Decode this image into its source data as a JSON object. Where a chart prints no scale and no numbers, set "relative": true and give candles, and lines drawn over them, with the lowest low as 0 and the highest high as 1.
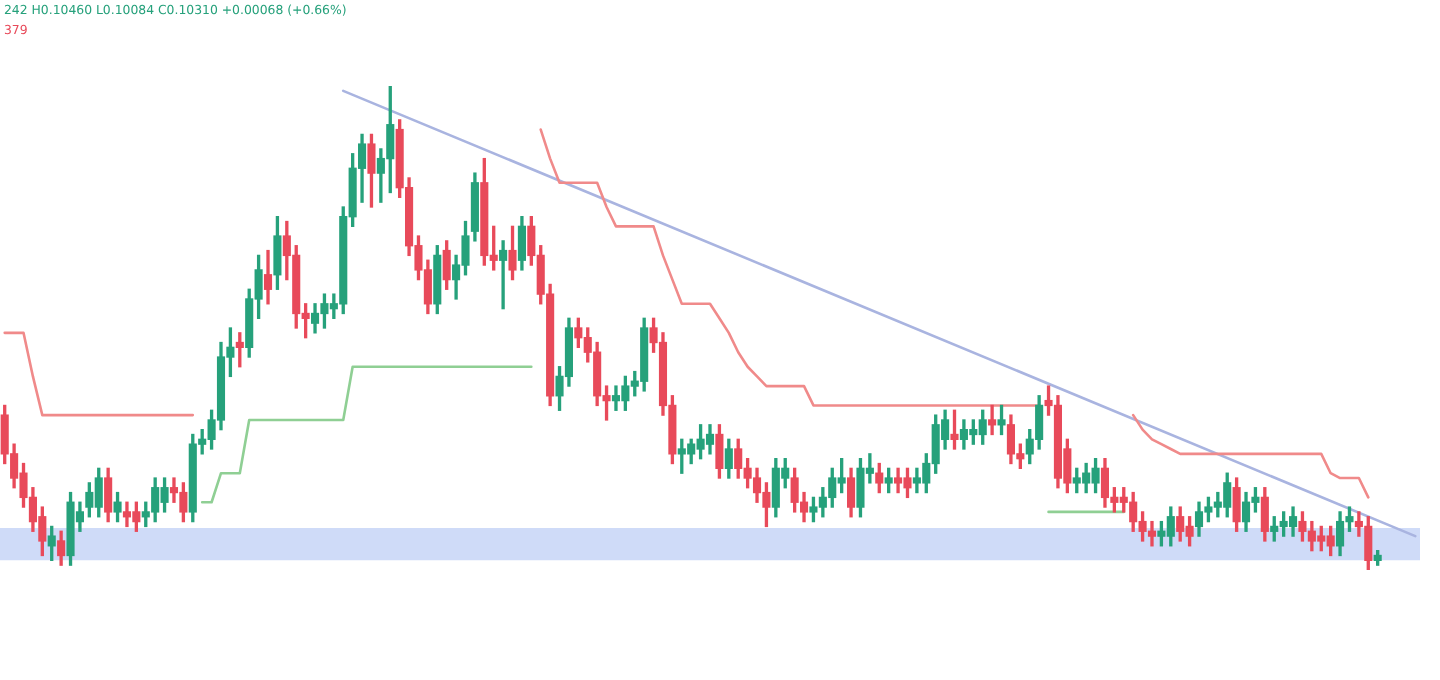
{
  "chart_data": {
    "type": "candlestick",
    "relative": true,
    "tick_labels": false,
    "grid": false,
    "legend": false,
    "marker": "none",
    "annotations": [
      "242 H0.10460 L0.10084 C0.10310 +0.00068 (+0.66%)",
      "379"
    ],
    "categories": [
      null,
      null,
      null,
      null,
      null,
      null,
      null,
      null,
      null,
      null,
      null,
      null,
      null,
      null,
      null,
      null,
      null,
      null,
      null,
      null,
      null,
      null,
      null,
      null,
      null,
      null,
      null,
      null,
      null,
      null,
      null,
      null,
      null,
      null,
      null,
      null,
      null,
      null,
      null,
      null,
      null,
      null,
      null,
      null,
      null,
      null,
      null,
      null,
      null,
      null,
      null,
      null,
      null,
      null,
      null,
      null,
      null,
      null,
      null,
      null,
      null,
      null,
      null,
      null,
      null,
      null,
      null,
      null,
      null,
      null,
      null,
      null,
      null,
      null,
      null,
      null,
      null,
      null,
      null,
      null,
      null,
      null,
      null,
      null,
      null,
      null,
      null,
      null,
      null,
      null,
      null,
      null,
      null,
      null,
      null,
      null,
      null,
      null,
      null,
      null,
      null,
      null,
      null,
      null,
      null,
      null,
      null,
      null,
      null,
      null,
      null,
      null,
      null,
      null,
      null,
      null,
      null,
      null,
      null,
      null,
      null,
      null,
      null,
      null,
      null,
      null,
      null,
      null,
      null,
      null,
      null,
      null,
      null,
      null,
      null,
      null,
      null,
      null,
      null,
      null,
      null,
      null,
      null,
      null,
      null,
      null,
      null,
      null,
      null,
      null,
      null
    ],
    "bands": [
      {
        "axis": "y",
        "from": 0.02,
        "to": 0.087,
        "color": "#cfdbf8"
      }
    ],
    "series": [
      {
        "type": "candlestick",
        "ohlc": [
          [
            0.32,
            0.34,
            0.22,
            0.24
          ],
          [
            0.24,
            0.26,
            0.17,
            0.19
          ],
          [
            0.2,
            0.22,
            0.13,
            0.15
          ],
          [
            0.15,
            0.17,
            0.08,
            0.1
          ],
          [
            0.11,
            0.13,
            0.03,
            0.06
          ],
          [
            0.05,
            0.09,
            0.02,
            0.07
          ],
          [
            0.06,
            0.08,
            0.01,
            0.03
          ],
          [
            0.03,
            0.16,
            0.01,
            0.14
          ],
          [
            0.1,
            0.14,
            0.08,
            0.12
          ],
          [
            0.13,
            0.18,
            0.11,
            0.16
          ],
          [
            0.13,
            0.21,
            0.11,
            0.19
          ],
          [
            0.19,
            0.21,
            0.1,
            0.12
          ],
          [
            0.12,
            0.16,
            0.1,
            0.14
          ],
          [
            0.12,
            0.14,
            0.09,
            0.11
          ],
          [
            0.12,
            0.14,
            0.08,
            0.1
          ],
          [
            0.11,
            0.14,
            0.09,
            0.12
          ],
          [
            0.12,
            0.19,
            0.1,
            0.17
          ],
          [
            0.14,
            0.19,
            0.12,
            0.17
          ],
          [
            0.17,
            0.19,
            0.14,
            0.16
          ],
          [
            0.16,
            0.18,
            0.1,
            0.12
          ],
          [
            0.12,
            0.28,
            0.1,
            0.26
          ],
          [
            0.26,
            0.29,
            0.24,
            0.27
          ],
          [
            0.27,
            0.33,
            0.25,
            0.31
          ],
          [
            0.31,
            0.47,
            0.29,
            0.44
          ],
          [
            0.44,
            0.5,
            0.4,
            0.46
          ],
          [
            0.47,
            0.49,
            0.42,
            0.46
          ],
          [
            0.46,
            0.58,
            0.44,
            0.56
          ],
          [
            0.56,
            0.65,
            0.52,
            0.62
          ],
          [
            0.61,
            0.66,
            0.55,
            0.58
          ],
          [
            0.61,
            0.73,
            0.58,
            0.69
          ],
          [
            0.69,
            0.72,
            0.6,
            0.65
          ],
          [
            0.65,
            0.67,
            0.5,
            0.53
          ],
          [
            0.53,
            0.55,
            0.48,
            0.52
          ],
          [
            0.51,
            0.55,
            0.49,
            0.53
          ],
          [
            0.53,
            0.57,
            0.5,
            0.55
          ],
          [
            0.54,
            0.57,
            0.52,
            0.55
          ],
          [
            0.55,
            0.75,
            0.53,
            0.73
          ],
          [
            0.73,
            0.86,
            0.71,
            0.83
          ],
          [
            0.83,
            0.9,
            0.76,
            0.88
          ],
          [
            0.88,
            0.9,
            0.75,
            0.82
          ],
          [
            0.82,
            0.87,
            0.76,
            0.85
          ],
          [
            0.85,
            1.0,
            0.78,
            0.92
          ],
          [
            0.91,
            0.93,
            0.77,
            0.79
          ],
          [
            0.79,
            0.81,
            0.65,
            0.67
          ],
          [
            0.67,
            0.69,
            0.6,
            0.62
          ],
          [
            0.62,
            0.64,
            0.53,
            0.55
          ],
          [
            0.55,
            0.67,
            0.53,
            0.65
          ],
          [
            0.66,
            0.68,
            0.58,
            0.6
          ],
          [
            0.6,
            0.65,
            0.56,
            0.63
          ],
          [
            0.63,
            0.72,
            0.61,
            0.69
          ],
          [
            0.7,
            0.82,
            0.68,
            0.8
          ],
          [
            0.8,
            0.85,
            0.63,
            0.65
          ],
          [
            0.65,
            0.71,
            0.62,
            0.64
          ],
          [
            0.64,
            0.68,
            0.54,
            0.66
          ],
          [
            0.66,
            0.71,
            0.6,
            0.62
          ],
          [
            0.64,
            0.73,
            0.62,
            0.71
          ],
          [
            0.71,
            0.73,
            0.63,
            0.65
          ],
          [
            0.65,
            0.67,
            0.55,
            0.57
          ],
          [
            0.57,
            0.59,
            0.34,
            0.36
          ],
          [
            0.36,
            0.42,
            0.33,
            0.4
          ],
          [
            0.4,
            0.52,
            0.38,
            0.5
          ],
          [
            0.5,
            0.52,
            0.46,
            0.48
          ],
          [
            0.48,
            0.5,
            0.43,
            0.45
          ],
          [
            0.45,
            0.47,
            0.34,
            0.36
          ],
          [
            0.36,
            0.38,
            0.31,
            0.35
          ],
          [
            0.35,
            0.38,
            0.33,
            0.36
          ],
          [
            0.35,
            0.4,
            0.33,
            0.38
          ],
          [
            0.38,
            0.41,
            0.36,
            0.39
          ],
          [
            0.39,
            0.52,
            0.37,
            0.5
          ],
          [
            0.5,
            0.52,
            0.45,
            0.47
          ],
          [
            0.47,
            0.49,
            0.32,
            0.34
          ],
          [
            0.34,
            0.36,
            0.22,
            0.24
          ],
          [
            0.24,
            0.27,
            0.2,
            0.25
          ],
          [
            0.24,
            0.27,
            0.22,
            0.26
          ],
          [
            0.25,
            0.3,
            0.23,
            0.27
          ],
          [
            0.26,
            0.3,
            0.24,
            0.28
          ],
          [
            0.28,
            0.3,
            0.19,
            0.21
          ],
          [
            0.21,
            0.27,
            0.19,
            0.25
          ],
          [
            0.25,
            0.27,
            0.19,
            0.21
          ],
          [
            0.21,
            0.23,
            0.17,
            0.19
          ],
          [
            0.19,
            0.21,
            0.14,
            0.16
          ],
          [
            0.16,
            0.18,
            0.09,
            0.13
          ],
          [
            0.13,
            0.23,
            0.11,
            0.21
          ],
          [
            0.19,
            0.23,
            0.17,
            0.21
          ],
          [
            0.19,
            0.21,
            0.12,
            0.14
          ],
          [
            0.14,
            0.16,
            0.1,
            0.12
          ],
          [
            0.12,
            0.15,
            0.1,
            0.13
          ],
          [
            0.13,
            0.17,
            0.11,
            0.15
          ],
          [
            0.15,
            0.21,
            0.13,
            0.19
          ],
          [
            0.18,
            0.23,
            0.16,
            0.19
          ],
          [
            0.19,
            0.21,
            0.11,
            0.13
          ],
          [
            0.13,
            0.23,
            0.11,
            0.21
          ],
          [
            0.2,
            0.24,
            0.18,
            0.21
          ],
          [
            0.2,
            0.22,
            0.16,
            0.18
          ],
          [
            0.18,
            0.21,
            0.16,
            0.19
          ],
          [
            0.19,
            0.21,
            0.16,
            0.18
          ],
          [
            0.19,
            0.21,
            0.15,
            0.17
          ],
          [
            0.18,
            0.21,
            0.16,
            0.19
          ],
          [
            0.18,
            0.24,
            0.16,
            0.22
          ],
          [
            0.22,
            0.32,
            0.2,
            0.3
          ],
          [
            0.27,
            0.33,
            0.25,
            0.31
          ],
          [
            0.28,
            0.33,
            0.25,
            0.27
          ],
          [
            0.27,
            0.31,
            0.25,
            0.29
          ],
          [
            0.28,
            0.31,
            0.26,
            0.29
          ],
          [
            0.28,
            0.33,
            0.26,
            0.31
          ],
          [
            0.31,
            0.34,
            0.28,
            0.3
          ],
          [
            0.3,
            0.34,
            0.28,
            0.31
          ],
          [
            0.3,
            0.32,
            0.22,
            0.24
          ],
          [
            0.24,
            0.26,
            0.21,
            0.23
          ],
          [
            0.24,
            0.29,
            0.22,
            0.27
          ],
          [
            0.27,
            0.36,
            0.25,
            0.34
          ],
          [
            0.35,
            0.38,
            0.32,
            0.34
          ],
          [
            0.34,
            0.36,
            0.17,
            0.19
          ],
          [
            0.25,
            0.27,
            0.16,
            0.18
          ],
          [
            0.18,
            0.21,
            0.16,
            0.19
          ],
          [
            0.18,
            0.22,
            0.16,
            0.2
          ],
          [
            0.18,
            0.23,
            0.16,
            0.21
          ],
          [
            0.21,
            0.23,
            0.13,
            0.15
          ],
          [
            0.15,
            0.17,
            0.12,
            0.14
          ],
          [
            0.15,
            0.17,
            0.12,
            0.14
          ],
          [
            0.14,
            0.16,
            0.08,
            0.1
          ],
          [
            0.1,
            0.12,
            0.06,
            0.08
          ],
          [
            0.08,
            0.1,
            0.05,
            0.07
          ],
          [
            0.07,
            0.1,
            0.05,
            0.08
          ],
          [
            0.07,
            0.13,
            0.05,
            0.11
          ],
          [
            0.11,
            0.13,
            0.06,
            0.08
          ],
          [
            0.09,
            0.11,
            0.05,
            0.07
          ],
          [
            0.09,
            0.14,
            0.07,
            0.12
          ],
          [
            0.12,
            0.15,
            0.1,
            0.13
          ],
          [
            0.13,
            0.16,
            0.11,
            0.14
          ],
          [
            0.13,
            0.2,
            0.11,
            0.18
          ],
          [
            0.17,
            0.19,
            0.08,
            0.1
          ],
          [
            0.1,
            0.16,
            0.08,
            0.14
          ],
          [
            0.14,
            0.17,
            0.12,
            0.15
          ],
          [
            0.15,
            0.17,
            0.06,
            0.08
          ],
          [
            0.08,
            0.11,
            0.06,
            0.09
          ],
          [
            0.09,
            0.12,
            0.07,
            0.1
          ],
          [
            0.09,
            0.13,
            0.07,
            0.11
          ],
          [
            0.1,
            0.12,
            0.06,
            0.08
          ],
          [
            0.08,
            0.1,
            0.04,
            0.06
          ],
          [
            0.07,
            0.09,
            0.04,
            0.06
          ],
          [
            0.07,
            0.09,
            0.03,
            0.05
          ],
          [
            0.05,
            0.12,
            0.03,
            0.1
          ],
          [
            0.1,
            0.13,
            0.08,
            0.11
          ],
          [
            0.1,
            0.12,
            0.07,
            0.09
          ],
          [
            0.09,
            0.11,
            0.0,
            0.02
          ],
          [
            0.02,
            0.04,
            0.01,
            0.03
          ],
          null,
          null,
          null,
          null
        ],
        "colors": [
          "#e84a5a",
          "#e84a5a",
          "#e84a5a",
          "#e84a5a",
          "#e84a5a",
          "#26a17b",
          "#e84a5a",
          "#26a17b",
          "#26a17b",
          "#26a17b",
          "#26a17b",
          "#e84a5a",
          "#26a17b",
          "#e84a5a",
          "#e84a5a",
          "#26a17b",
          "#26a17b",
          "#26a17b",
          "#e84a5a",
          "#e84a5a",
          "#26a17b",
          "#26a17b",
          "#26a17b",
          "#26a17b",
          "#26a17b",
          "#e84a5a",
          "#26a17b",
          "#26a17b",
          "#e84a5a",
          "#26a17b",
          "#e84a5a",
          "#e84a5a",
          "#e84a5a",
          "#26a17b",
          "#26a17b",
          "#26a17b",
          "#26a17b",
          "#26a17b",
          "#26a17b",
          "#e84a5a",
          "#26a17b",
          "#26a17b",
          "#e84a5a",
          "#e84a5a",
          "#e84a5a",
          "#e84a5a",
          "#26a17b",
          "#e84a5a",
          "#26a17b",
          "#26a17b",
          "#26a17b",
          "#e84a5a",
          "#e84a5a",
          "#26a17b",
          "#e84a5a",
          "#26a17b",
          "#e84a5a",
          "#e84a5a",
          "#e84a5a",
          "#26a17b",
          "#26a17b",
          "#e84a5a",
          "#e84a5a",
          "#e84a5a",
          "#e84a5a",
          "#26a17b",
          "#26a17b",
          "#26a17b",
          "#26a17b",
          "#e84a5a",
          "#e84a5a",
          "#e84a5a",
          "#26a17b",
          "#26a17b",
          "#26a17b",
          "#26a17b",
          "#e84a5a",
          "#26a17b",
          "#e84a5a",
          "#e84a5a",
          "#e84a5a",
          "#e84a5a",
          "#26a17b",
          "#26a17b",
          "#e84a5a",
          "#e84a5a",
          "#26a17b",
          "#26a17b",
          "#26a17b",
          "#26a17b",
          "#e84a5a",
          "#26a17b",
          "#26a17b",
          "#e84a5a",
          "#26a17b",
          "#e84a5a",
          "#e84a5a",
          "#26a17b",
          "#26a17b",
          "#26a17b",
          "#26a17b",
          "#e84a5a",
          "#26a17b",
          "#26a17b",
          "#26a17b",
          "#e84a5a",
          "#26a17b",
          "#e84a5a",
          "#e84a5a",
          "#26a17b",
          "#26a17b",
          "#e84a5a",
          "#e84a5a",
          "#e84a5a",
          "#26a17b",
          "#26a17b",
          "#26a17b",
          "#e84a5a",
          "#e84a5a",
          "#e84a5a",
          "#e84a5a",
          "#e84a5a",
          "#e84a5a",
          "#26a17b",
          "#26a17b",
          "#e84a5a",
          "#e84a5a",
          "#26a17b",
          "#26a17b",
          "#26a17b",
          "#26a17b",
          "#e84a5a",
          "#26a17b",
          "#26a17b",
          "#e84a5a",
          "#26a17b",
          "#26a17b",
          "#26a17b",
          "#e84a5a",
          "#e84a5a",
          "#e84a5a",
          "#e84a5a",
          "#26a17b",
          "#26a17b",
          "#e84a5a",
          "#e84a5a",
          "#26a17b",
          null,
          null,
          null,
          null
        ]
      },
      {
        "type": "line",
        "color": "#f08a8a",
        "values": [
          0.49,
          0.49,
          0.49,
          0.4,
          0.32,
          0.32,
          0.32,
          0.32,
          0.32,
          0.32,
          0.32,
          0.32,
          0.32,
          0.32,
          0.32,
          0.32,
          0.32,
          0.32,
          0.32,
          0.32,
          0.32,
          null,
          null,
          null,
          null,
          null,
          null,
          null,
          null,
          null,
          null,
          null,
          null,
          null,
          null,
          null,
          null,
          null,
          null,
          null,
          null,
          null,
          null,
          null,
          null,
          null,
          null,
          null,
          null,
          null,
          null,
          null,
          null,
          null,
          null,
          null,
          null,
          0.91,
          0.85,
          0.8,
          0.8,
          0.8,
          0.8,
          0.8,
          0.75,
          0.71,
          0.71,
          0.71,
          0.71,
          0.71,
          0.65,
          0.6,
          0.55,
          0.55,
          0.55,
          0.55,
          0.52,
          0.49,
          0.45,
          0.42,
          0.4,
          0.38,
          0.38,
          0.38,
          0.38,
          0.38,
          0.34,
          0.34,
          0.34,
          0.34,
          0.34,
          0.34,
          0.34,
          0.34,
          0.34,
          0.34,
          0.34,
          0.34,
          0.34,
          0.34,
          0.34,
          0.34,
          0.34,
          0.34,
          0.34,
          0.34,
          0.34,
          0.34,
          0.34,
          0.34,
          0.34,
          null,
          null,
          null,
          null,
          null,
          null,
          null,
          null,
          null,
          0.32,
          0.29,
          0.27,
          0.26,
          0.25,
          0.24,
          0.24,
          0.24,
          0.24,
          0.24,
          0.24,
          0.24,
          0.24,
          0.24,
          0.24,
          0.24,
          0.24,
          0.24,
          0.24,
          0.24,
          0.24,
          0.2,
          0.19,
          0.19,
          0.19,
          0.15,
          null,
          null,
          null,
          null,
          null
        ]
      },
      {
        "type": "line",
        "color": "#8fcf94",
        "values": [
          null,
          null,
          null,
          null,
          null,
          null,
          null,
          null,
          null,
          null,
          null,
          null,
          null,
          null,
          null,
          null,
          null,
          null,
          null,
          null,
          null,
          0.14,
          0.14,
          0.2,
          0.2,
          0.2,
          0.31,
          0.31,
          0.31,
          0.31,
          0.31,
          0.31,
          0.31,
          0.31,
          0.31,
          0.31,
          0.31,
          0.42,
          0.42,
          0.42,
          0.42,
          0.42,
          0.42,
          0.42,
          0.42,
          0.42,
          0.42,
          0.42,
          0.42,
          0.42,
          0.42,
          0.42,
          0.42,
          0.42,
          0.42,
          0.42,
          0.42,
          null,
          null,
          null,
          null,
          null,
          null,
          null,
          null,
          null,
          null,
          null,
          null,
          null,
          null,
          null,
          null,
          null,
          null,
          null,
          null,
          null,
          null,
          null,
          null,
          null,
          null,
          null,
          null,
          null,
          null,
          null,
          null,
          null,
          null,
          null,
          null,
          null,
          null,
          null,
          null,
          null,
          null,
          null,
          null,
          null,
          null,
          null,
          null,
          null,
          null,
          null,
          null,
          null,
          null,
          0.12,
          0.12,
          0.12,
          0.12,
          0.12,
          0.12,
          0.12,
          0.12,
          0.12,
          null,
          null,
          null,
          null,
          null,
          null,
          null,
          null,
          null,
          null,
          null,
          null,
          null,
          null,
          null,
          null,
          null,
          null,
          null,
          null,
          null,
          null,
          null,
          null,
          null,
          null,
          null,
          null,
          null,
          null,
          null
        ]
      },
      {
        "type": "line",
        "color": "#a9b4e0",
        "values": [
          null,
          null,
          null,
          null,
          null,
          null,
          null,
          null,
          null,
          null,
          null,
          null,
          null,
          null,
          null,
          null,
          null,
          null,
          null,
          null,
          null,
          null,
          null,
          null,
          null,
          null,
          null,
          null,
          null,
          null,
          null,
          null,
          null,
          null,
          null,
          null,
          0.99,
          null,
          null,
          null,
          null,
          null,
          null,
          null,
          null,
          null,
          null,
          null,
          null,
          null,
          null,
          null,
          null,
          null,
          null,
          null,
          null,
          null,
          null,
          null,
          null,
          null,
          null,
          null,
          null,
          null,
          null,
          null,
          null,
          null,
          null,
          null,
          null,
          null,
          null,
          null,
          null,
          null,
          null,
          null,
          null,
          null,
          null,
          null,
          null,
          null,
          null,
          null,
          null,
          null,
          null,
          null,
          null,
          null,
          null,
          null,
          null,
          null,
          null,
          null,
          null,
          null,
          null,
          null,
          null,
          null,
          null,
          null,
          null,
          null,
          null,
          null,
          null,
          null,
          null,
          null,
          null,
          null,
          null,
          null,
          null,
          null,
          null,
          null,
          null,
          null,
          null,
          null,
          null,
          null,
          null,
          null,
          null,
          null,
          null,
          null,
          null,
          null,
          null,
          null,
          null,
          null,
          null,
          null,
          null,
          null,
          null,
          null,
          null,
          null,
          0.07
        ]
      }
    ]
  }
}
